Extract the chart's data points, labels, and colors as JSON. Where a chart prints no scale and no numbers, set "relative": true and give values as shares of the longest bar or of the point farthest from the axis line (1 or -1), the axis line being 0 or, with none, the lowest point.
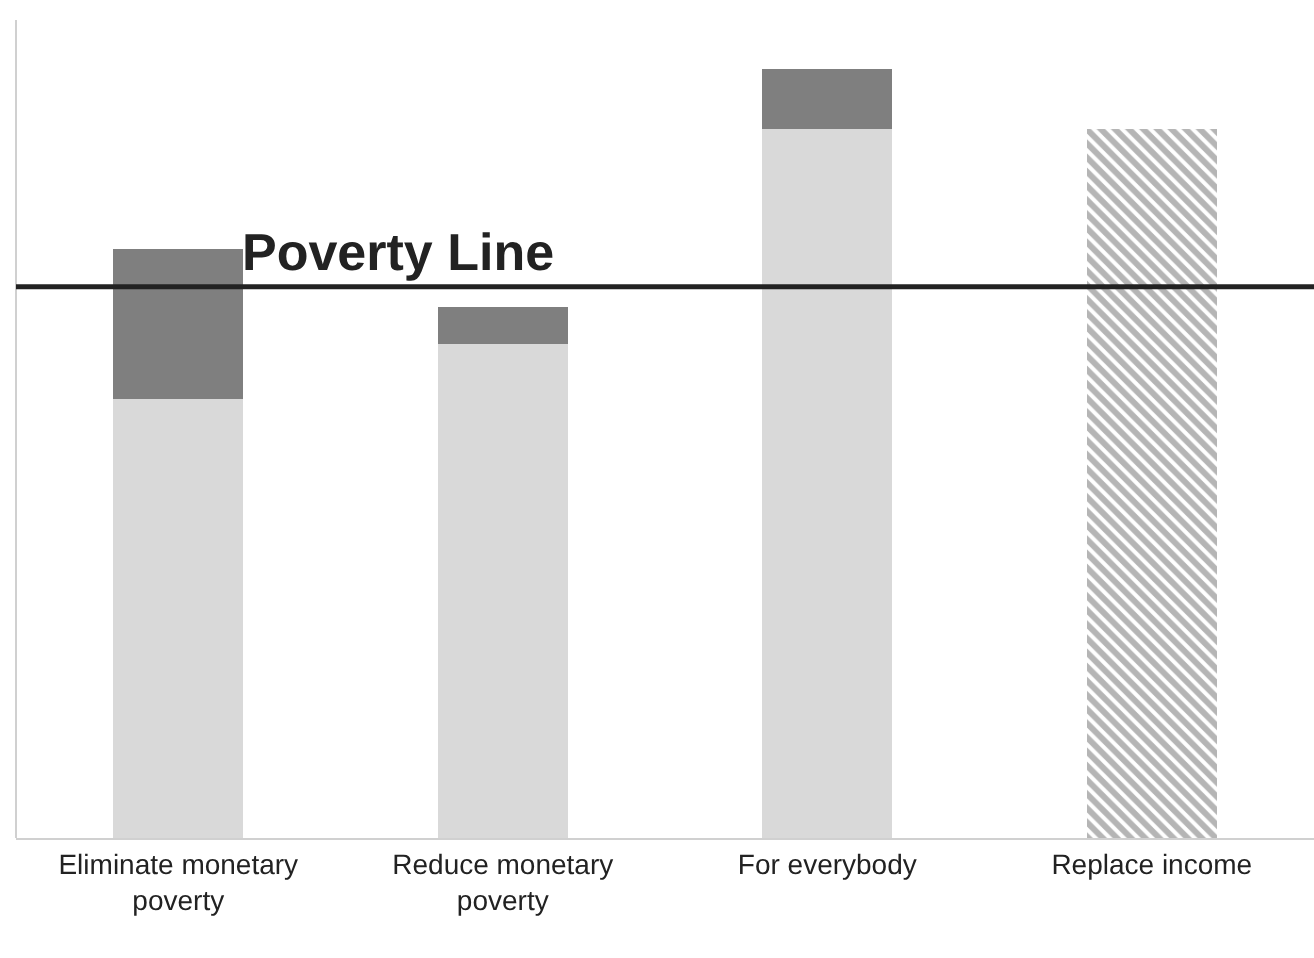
{
  "chart_data": {
    "type": "bar",
    "relative": true,
    "stacked": true,
    "categories": [
      "Eliminate monetary poverty",
      "Reduce monetary poverty",
      "For everybody",
      "Replace income"
    ],
    "series": [
      {
        "color": "#d9d9d9",
        "values": [
          0.571,
          0.642,
          0.922,
          null
        ]
      },
      {
        "color": "#7f7f7f",
        "values": [
          0.195,
          0.049,
          0.078,
          null
        ]
      },
      {
        "color": "#6b6b6b",
        "values": [
          null,
          null,
          null,
          0.922
        ]
      }
    ],
    "ref_lines": [
      {
        "axis": "y",
        "value": 0.717,
        "label": "Poverty Line",
        "color": "#222222"
      }
    ],
    "legend": false
  }
}
